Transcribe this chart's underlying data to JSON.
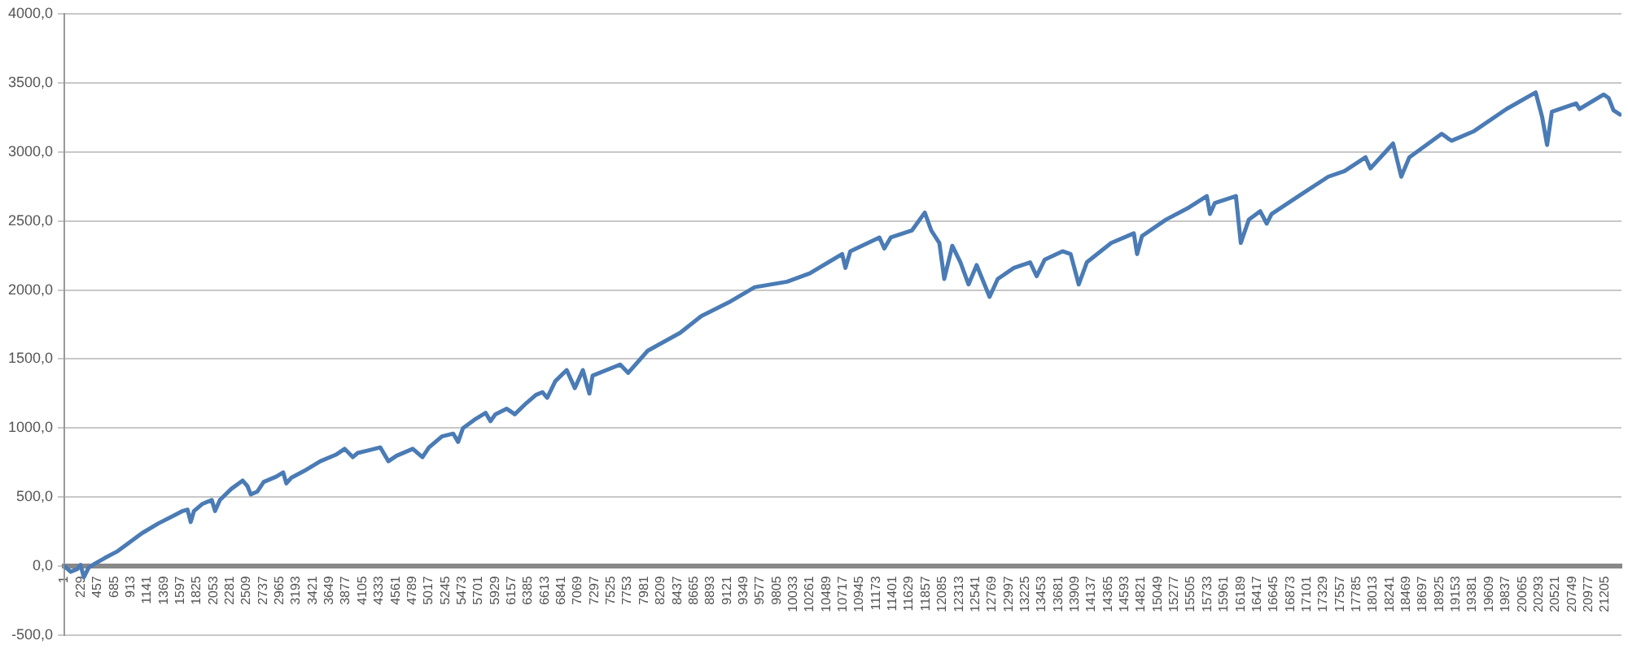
{
  "chart_data": {
    "type": "line",
    "series": [
      {
        "color": "#4a7bb5",
        "x": [
          1,
          90,
          179,
          224,
          269,
          336,
          425,
          559,
          737,
          915,
          1071,
          1294,
          1517,
          1629,
          1696,
          1740,
          1785,
          1897,
          2030,
          2075,
          2142,
          2298,
          2454,
          2521,
          2566,
          2655,
          2744,
          2922,
          3012,
          3056,
          3123,
          3301,
          3524,
          3747,
          3859,
          3970,
          4037,
          4193,
          4350,
          4461,
          4573,
          4796,
          4929,
          5019,
          5197,
          5353,
          5420,
          5487,
          5643,
          5799,
          5866,
          5933,
          6089,
          6200,
          6357,
          6490,
          6580,
          6646,
          6758,
          6914,
          7026,
          7137,
          7226,
          7271,
          7650,
          7761,
          8029,
          8475,
          8765,
          9144,
          9501,
          9947,
          10259,
          10705,
          10750,
          10817,
          11218,
          11285,
          11374,
          11664,
          11842,
          11932,
          12043,
          12110,
          12221,
          12333,
          12444,
          12556,
          12734,
          12846,
          13069,
          13292,
          13381,
          13493,
          13738,
          13849,
          13961,
          14072,
          14407,
          14719,
          14764,
          14831,
          15165,
          15455,
          15723,
          15767,
          15834,
          16124,
          16191,
          16302,
          16458,
          16548,
          16615,
          17016,
          17395,
          17618,
          17908,
          17975,
          18287,
          18399,
          18510,
          18956,
          19090,
          19402,
          19848,
          20249,
          20339,
          20406,
          20472,
          20807,
          20852,
          21186,
          21253,
          21320,
          21410
        ],
        "values": [
          0,
          -40,
          -20,
          10,
          -80,
          -10,
          20,
          60,
          110,
          180,
          240,
          310,
          370,
          400,
          410,
          320,
          400,
          450,
          480,
          400,
          480,
          560,
          620,
          580,
          520,
          540,
          610,
          650,
          680,
          600,
          640,
          690,
          760,
          810,
          850,
          790,
          820,
          840,
          860,
          760,
          800,
          850,
          790,
          860,
          940,
          960,
          900,
          1000,
          1060,
          1110,
          1050,
          1100,
          1140,
          1100,
          1180,
          1240,
          1260,
          1220,
          1340,
          1420,
          1290,
          1420,
          1250,
          1380,
          1460,
          1400,
          1560,
          1690,
          1810,
          1910,
          2020,
          2060,
          2120,
          2260,
          2160,
          2280,
          2380,
          2300,
          2380,
          2430,
          2560,
          2430,
          2340,
          2080,
          2320,
          2200,
          2040,
          2180,
          1950,
          2080,
          2160,
          2200,
          2100,
          2220,
          2280,
          2260,
          2040,
          2200,
          2340,
          2410,
          2260,
          2390,
          2510,
          2590,
          2680,
          2550,
          2630,
          2680,
          2340,
          2510,
          2570,
          2480,
          2550,
          2690,
          2820,
          2860,
          2960,
          2880,
          3060,
          2820,
          2960,
          3130,
          3080,
          3150,
          3310,
          3430,
          3250,
          3050,
          3290,
          3350,
          3310,
          3415,
          3390,
          3300,
          3270
        ]
      }
    ],
    "xlim": [
      1,
      21430
    ],
    "xticks": [
      1,
      229,
      457,
      685,
      913,
      1141,
      1369,
      1597,
      1825,
      2053,
      2281,
      2509,
      2737,
      2965,
      3193,
      3421,
      3649,
      3877,
      4105,
      4333,
      4561,
      4789,
      5017,
      5245,
      5473,
      5701,
      5929,
      6157,
      6385,
      6613,
      6841,
      7069,
      7297,
      7525,
      7753,
      7981,
      8209,
      8437,
      8665,
      8893,
      9121,
      9349,
      9577,
      9805,
      10033,
      10261,
      10489,
      10717,
      10945,
      11173,
      11401,
      11629,
      11857,
      12085,
      12313,
      12541,
      12769,
      12997,
      13225,
      13453,
      13681,
      13909,
      14137,
      14365,
      14593,
      14821,
      15049,
      15277,
      15505,
      15733,
      15961,
      16189,
      16417,
      16645,
      16873,
      17101,
      17329,
      17557,
      17785,
      18013,
      18241,
      18469,
      18697,
      18925,
      19153,
      19381,
      19609,
      19837,
      20065,
      20293,
      20521,
      20749,
      20977,
      21205
    ],
    "ylim": [
      -500,
      4000
    ],
    "yticks": [
      {
        "value": -500,
        "label": "-500,0"
      },
      {
        "value": 0,
        "label": "0,0"
      },
      {
        "value": 500,
        "label": "500,0"
      },
      {
        "value": 1000,
        "label": "1000,0"
      },
      {
        "value": 1500,
        "label": "1500,0"
      },
      {
        "value": 2000,
        "label": "2000,0"
      },
      {
        "value": 2500,
        "label": "2500,0"
      },
      {
        "value": 3000,
        "label": "3000,0"
      },
      {
        "value": 3500,
        "label": "3500,0"
      },
      {
        "value": 4000,
        "label": "4000,0"
      }
    ],
    "grid": "y",
    "legend": false,
    "marker": "none",
    "line_style": "solid"
  }
}
